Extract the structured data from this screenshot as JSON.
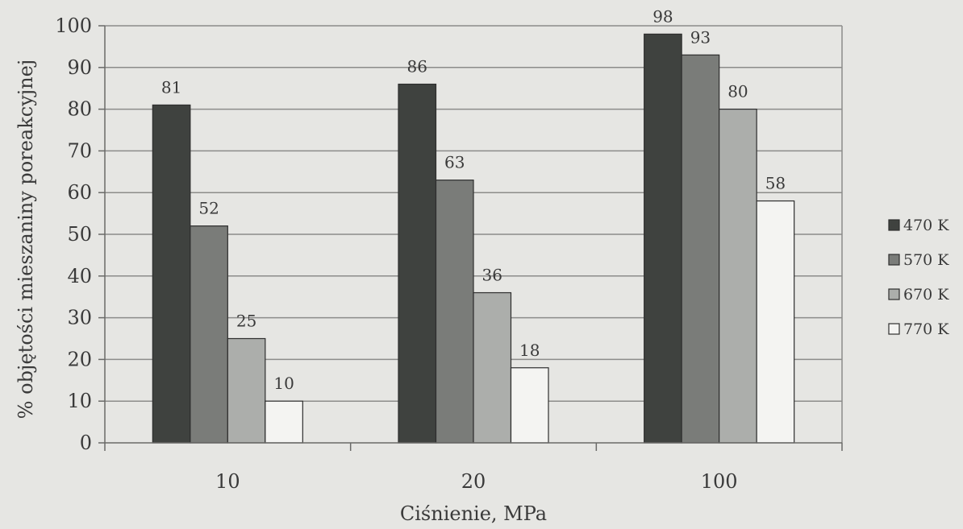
{
  "chart_data": {
    "type": "bar",
    "categories": [
      "10",
      "20",
      "100"
    ],
    "xlabel": "Ciśnienie, MPa",
    "ylabel": "% objętości mieszaniny poreakcyjnej",
    "ylim": [
      0,
      100
    ],
    "yticks": [
      0,
      10,
      20,
      30,
      40,
      50,
      60,
      70,
      80,
      90,
      100
    ],
    "grid": "horizontal",
    "legend_position": "right",
    "series": [
      {
        "name": "470 K",
        "values": [
          81,
          86,
          98
        ],
        "color": "#3f423f"
      },
      {
        "name": "570 K",
        "values": [
          52,
          63,
          93
        ],
        "color": "#7a7c79"
      },
      {
        "name": "670 K",
        "values": [
          25,
          36,
          80
        ],
        "color": "#acaeab"
      },
      {
        "name": "770 K",
        "values": [
          10,
          18,
          58
        ],
        "color": "#f4f4f2"
      }
    ],
    "data_labels": [
      [
        "81",
        "86",
        "98"
      ],
      [
        "52",
        "63",
        "93"
      ],
      [
        "25",
        "36",
        "80"
      ],
      [
        "10",
        "18",
        "58"
      ]
    ]
  }
}
